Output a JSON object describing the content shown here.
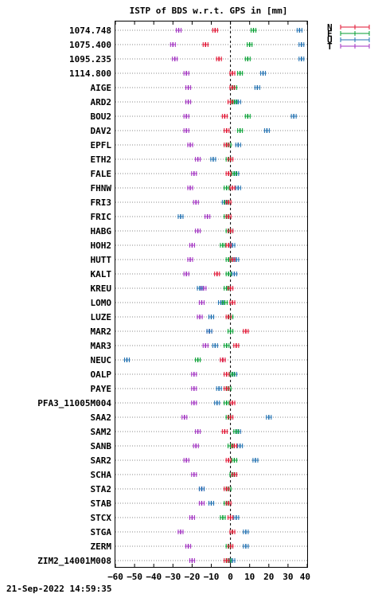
{
  "chart_data": {
    "type": "scatter",
    "title": "ISTP of BDS w.r.t. GPS in [mm]",
    "xlim": [
      -60,
      40
    ],
    "x_ticks": [
      -60,
      -50,
      -40,
      -30,
      -20,
      -10,
      0,
      10,
      20,
      30,
      40
    ],
    "x_tick_labels": [
      "−60",
      "−50",
      "−40",
      "−30",
      "−20",
      "−10",
      "0",
      "10",
      "20",
      "30",
      "40"
    ],
    "grid": "horizontal-dotted",
    "zero_line": "dashed",
    "legend_position": "top-right",
    "series": [
      {
        "name": "N",
        "color": "#e0102f"
      },
      {
        "name": "E",
        "color": "#009e2f"
      },
      {
        "name": "U",
        "color": "#2070b0"
      },
      {
        "name": "T",
        "color": "#a030c0"
      }
    ],
    "stations": [
      {
        "label": "1074.748",
        "N": -8,
        "E": 12,
        "U": 36,
        "T": -27
      },
      {
        "label": "1075.400",
        "N": -13,
        "E": 10,
        "U": 37,
        "T": -30
      },
      {
        "label": "1095.235",
        "N": -6,
        "E": 9,
        "U": 37,
        "T": -29
      },
      {
        "label": "1114.800",
        "N": 1,
        "E": 5,
        "U": 17,
        "T": -23
      },
      {
        "label": "AIGE",
        "N": 1,
        "E": 2,
        "U": 14,
        "T": -22
      },
      {
        "label": "ARD2",
        "N": 0,
        "E": 2,
        "U": 4,
        "T": -22
      },
      {
        "label": "BOU2",
        "N": -3,
        "E": 9,
        "U": 33,
        "T": -23
      },
      {
        "label": "DAV2",
        "N": -2,
        "E": 5,
        "U": 19,
        "T": -23
      },
      {
        "label": "EPFL",
        "N": -2,
        "E": -1,
        "U": 4,
        "T": -21
      },
      {
        "label": "ETH2",
        "N": 0,
        "E": -1,
        "U": -9,
        "T": -17
      },
      {
        "label": "FALE",
        "N": -1,
        "E": 2,
        "U": 3,
        "T": -19
      },
      {
        "label": "FHNW",
        "N": 1,
        "E": -2,
        "U": 4,
        "T": -21
      },
      {
        "label": "FRI3",
        "N": -1,
        "E": -2,
        "U": -3,
        "T": -18
      },
      {
        "label": "FRIC",
        "N": -1,
        "E": -2,
        "U": -26,
        "T": -12
      },
      {
        "label": "HABG",
        "N": 0,
        "E": -1,
        "U": 0,
        "T": -17
      },
      {
        "label": "HOH2",
        "N": -1,
        "E": -4,
        "U": 1,
        "T": -20
      },
      {
        "label": "HUTT",
        "N": 1,
        "E": -1,
        "U": 3,
        "T": -21
      },
      {
        "label": "KALT",
        "N": -7,
        "E": -1,
        "U": 2,
        "T": -23
      },
      {
        "label": "KREU",
        "N": 0,
        "E": -2,
        "U": -16,
        "T": -14
      },
      {
        "label": "LOMO",
        "N": 1,
        "E": -3,
        "U": -5,
        "T": -15
      },
      {
        "label": "LUZE",
        "N": -1,
        "E": 0,
        "U": -10,
        "T": -16
      },
      {
        "label": "MAR2",
        "N": 8,
        "E": 0,
        "U": -11,
        "T": -11
      },
      {
        "label": "MAR3",
        "N": 3,
        "E": -2,
        "U": -8,
        "T": -13
      },
      {
        "label": "NEUC",
        "N": -4,
        "E": -17,
        "U": -54,
        "T": -4
      },
      {
        "label": "OALP",
        "N": -2,
        "E": 1,
        "U": 2,
        "T": -19
      },
      {
        "label": "PAYE",
        "N": -2,
        "E": -1,
        "U": -6,
        "T": -19
      },
      {
        "label": "PFA3_11005M004",
        "N": 1,
        "E": -2,
        "U": -7,
        "T": -19
      },
      {
        "label": "SAA2",
        "N": 0,
        "E": -1,
        "U": 20,
        "T": -24
      },
      {
        "label": "SAM2",
        "N": -3,
        "E": 3,
        "U": 4,
        "T": -17
      },
      {
        "label": "SANB",
        "N": 2,
        "E": 0,
        "U": 5,
        "T": -18
      },
      {
        "label": "SAR2",
        "N": -1,
        "E": 2,
        "U": 13,
        "T": -23
      },
      {
        "label": "SCHA",
        "N": 2,
        "E": 1,
        "U": 2,
        "T": -19
      },
      {
        "label": "STA2",
        "N": -2,
        "E": -1,
        "U": -15,
        "T": -15
      },
      {
        "label": "STAB",
        "N": -1,
        "E": -2,
        "U": -10,
        "T": -15
      },
      {
        "label": "STCX",
        "N": 0,
        "E": -4,
        "U": 3,
        "T": -20
      },
      {
        "label": "STGA",
        "N": 1,
        "E": 1,
        "U": 8,
        "T": -26
      },
      {
        "label": "ZERM",
        "N": 0,
        "E": -1,
        "U": 8,
        "T": -22
      },
      {
        "label": "ZIM2_14001M008",
        "N": -2,
        "E": -1,
        "U": 1,
        "T": -20
      }
    ]
  },
  "footer": {
    "timestamp": "21-Sep-2022 14:59:35"
  }
}
